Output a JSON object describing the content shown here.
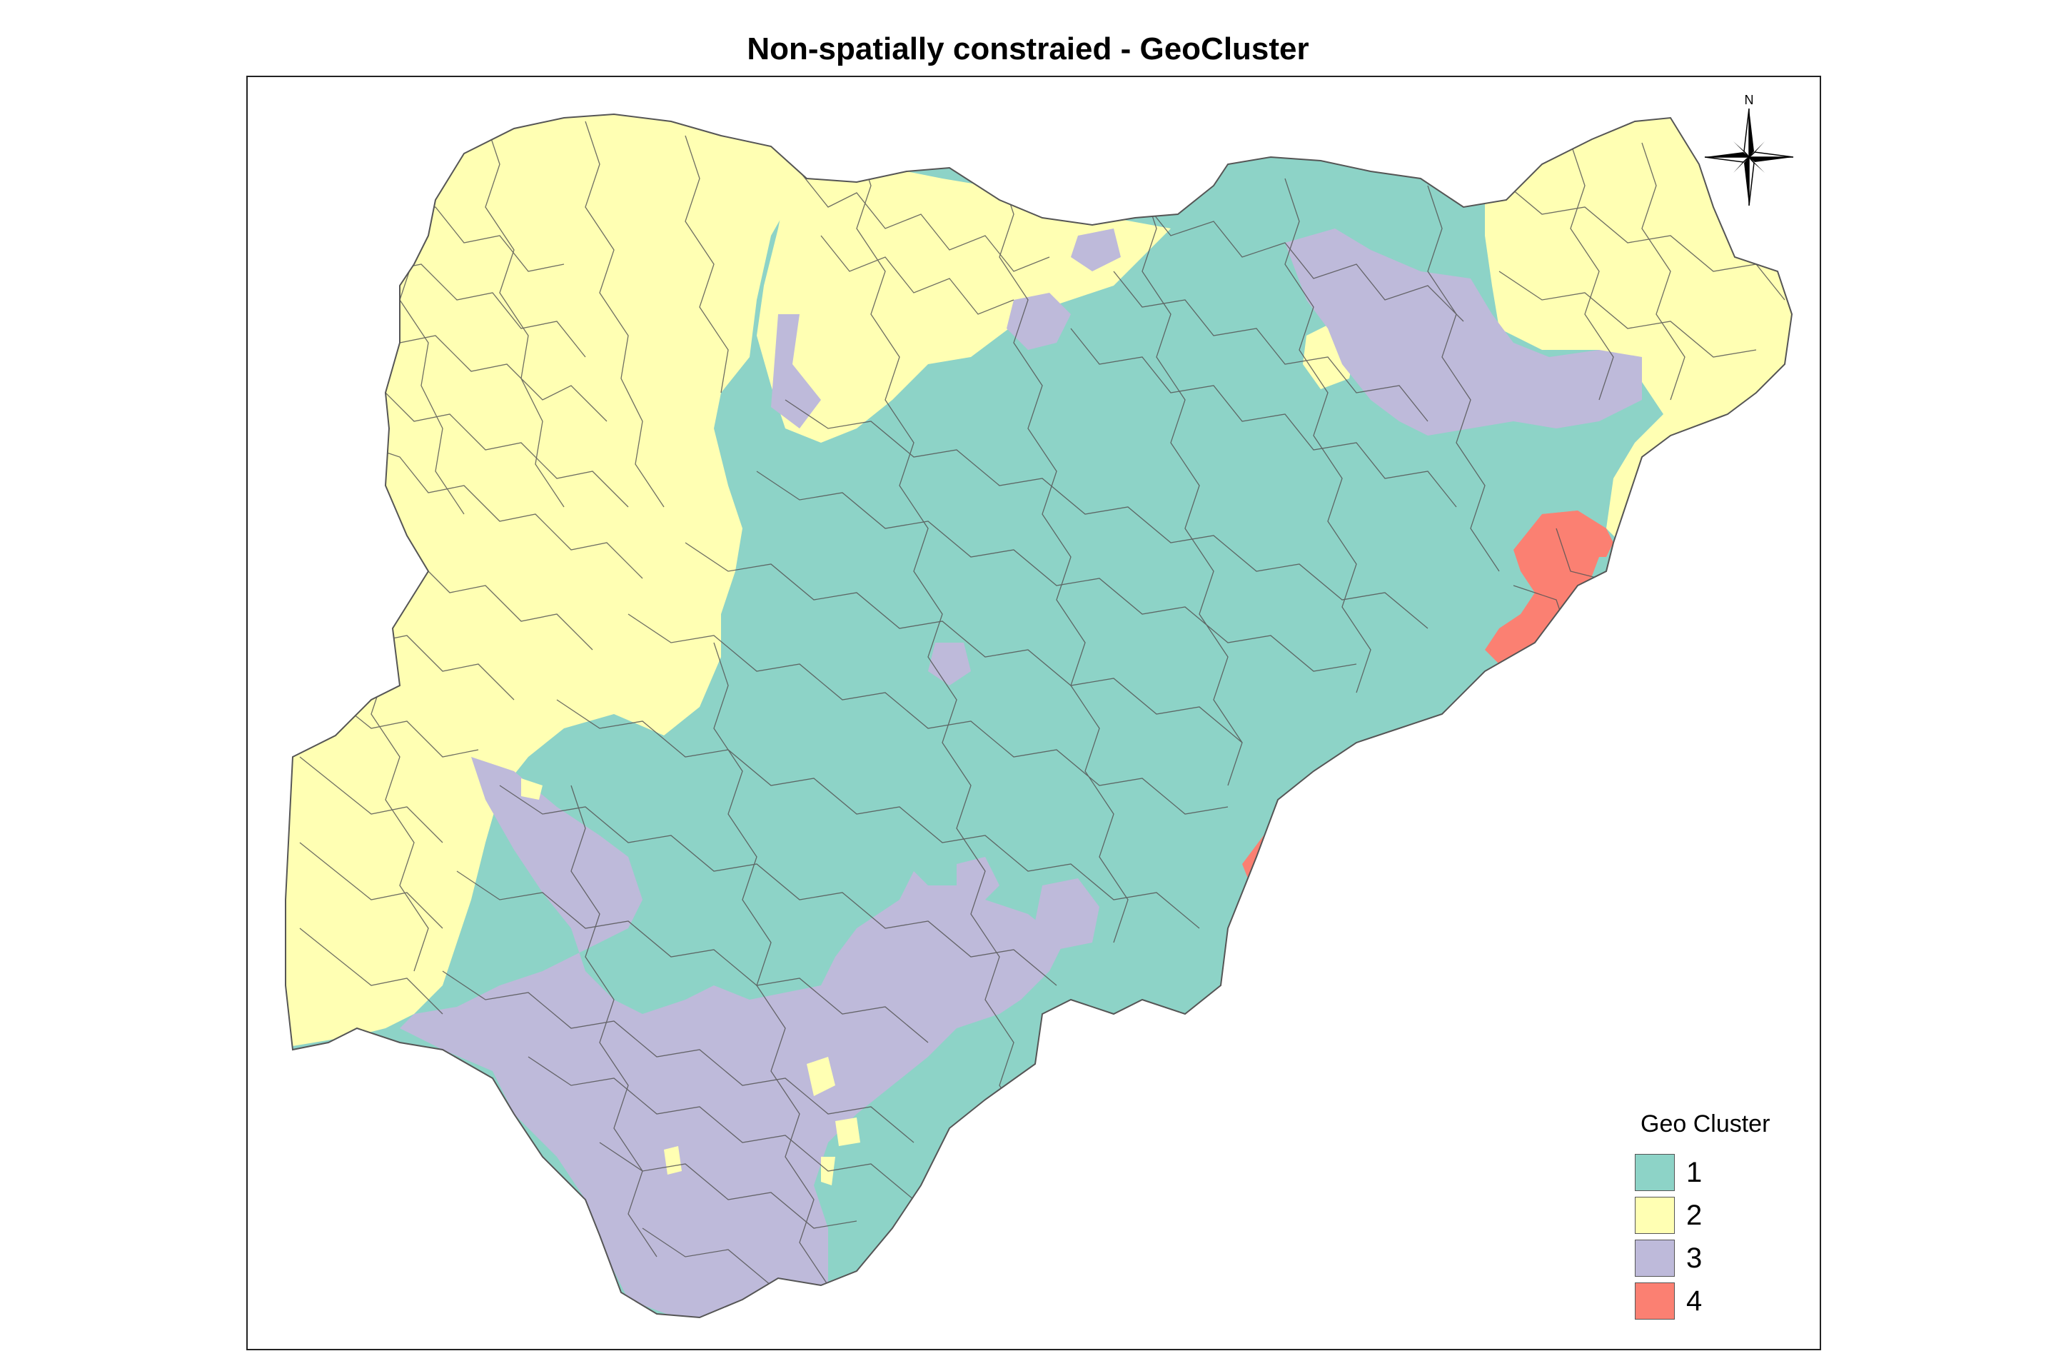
{
  "title": "Non-spatially constraied - GeoCluster",
  "compass": {
    "label": "N",
    "icon": "north-arrow-compass-rose"
  },
  "legend": {
    "title": "Geo Cluster",
    "items": [
      {
        "label": "1",
        "color": "#8dd3c7"
      },
      {
        "label": "2",
        "color": "#ffffb3"
      },
      {
        "label": "3",
        "color": "#bebada"
      },
      {
        "label": "4",
        "color": "#fb8072"
      }
    ]
  },
  "colors": {
    "boundary": "#555555",
    "frame": "#222222"
  }
}
